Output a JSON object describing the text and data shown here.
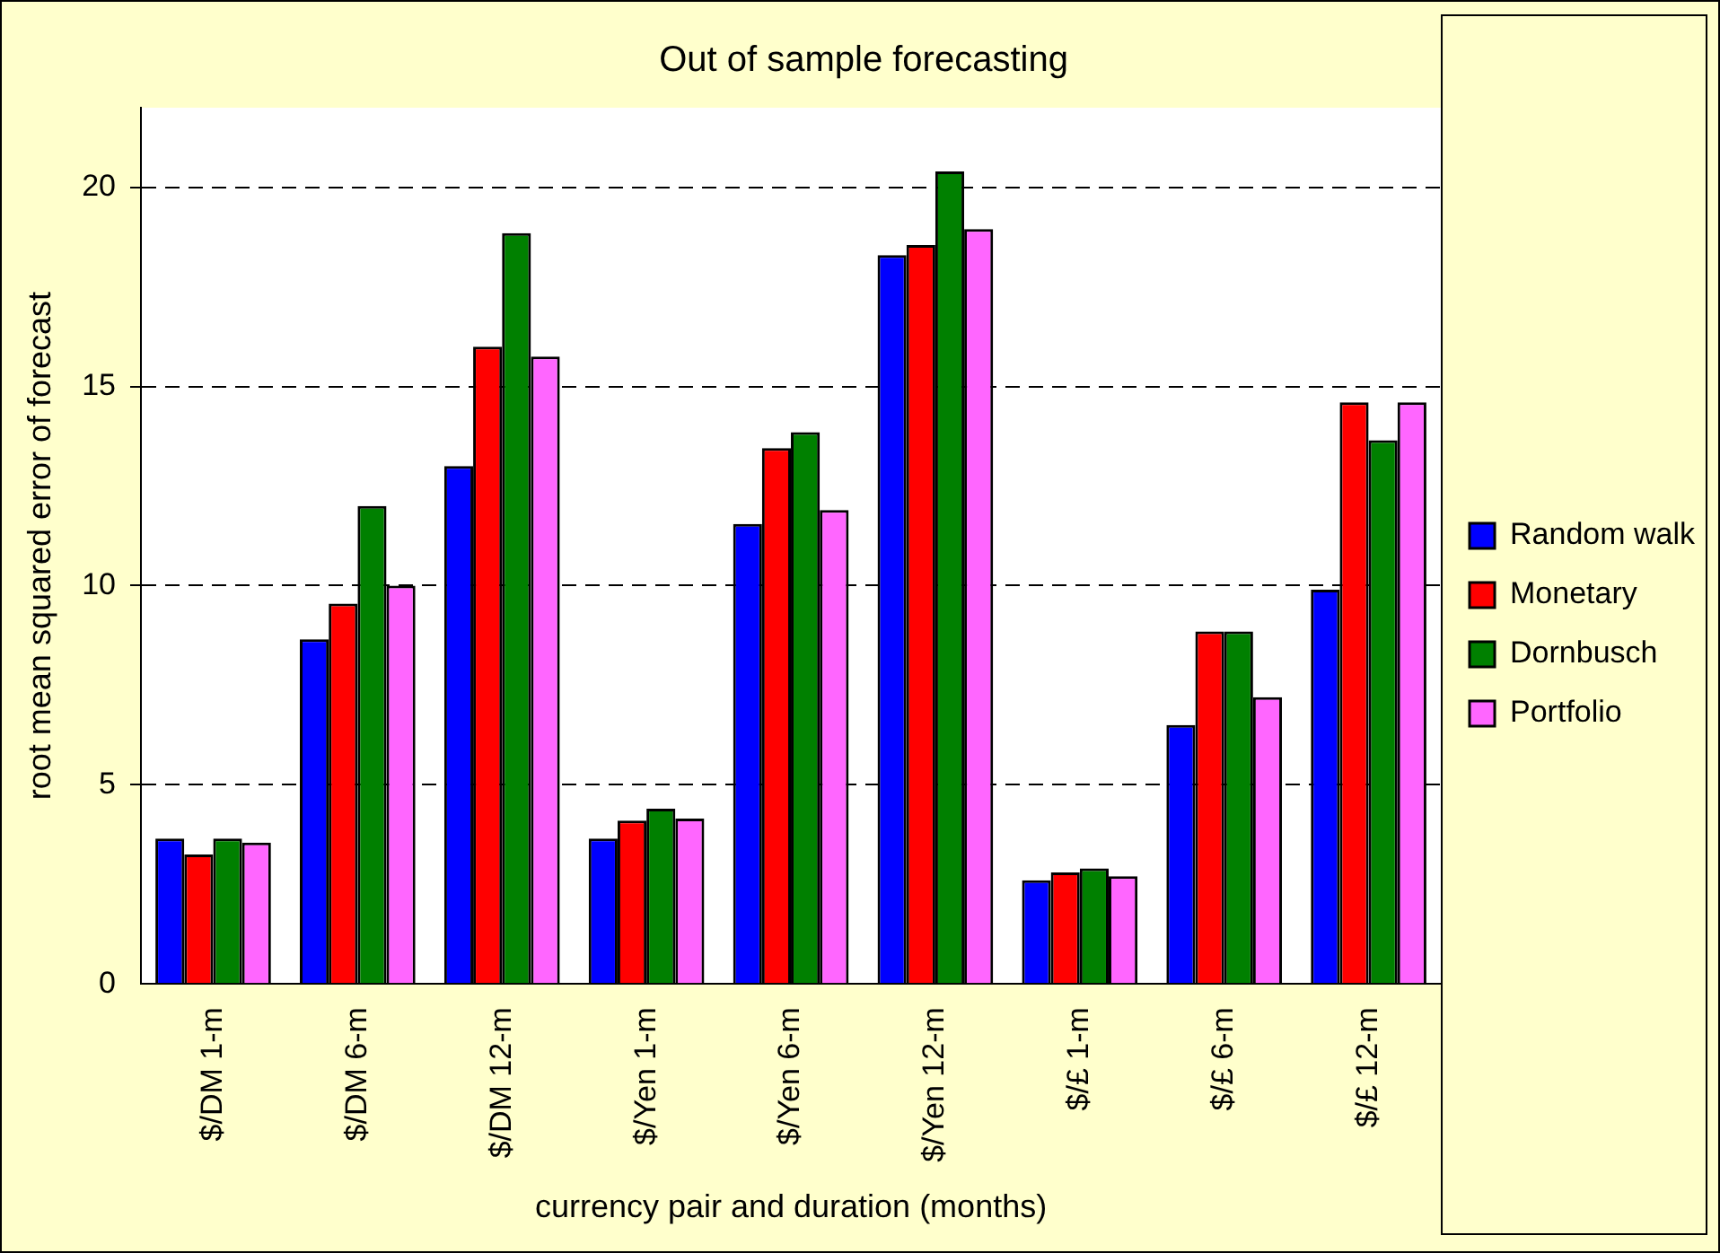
{
  "chart_data": {
    "type": "bar",
    "title": "Out of sample forecasting",
    "xlabel": "currency pair and duration (months)",
    "ylabel": "root mean squared error of forecast",
    "categories": [
      "$/DM 1-m",
      "$/DM 6-m",
      "$/DM 12-m",
      "$/Yen 1-m",
      "$/Yen 6-m",
      "$/Yen 12-m",
      "$/£ 1-m",
      "$/£ 6-m",
      "$/£ 12-m"
    ],
    "series": [
      {
        "name": "Random walk",
        "color": "#0000ff",
        "values": [
          3.65,
          8.65,
          13.0,
          3.65,
          11.55,
          18.3,
          2.6,
          6.5,
          9.9
        ]
      },
      {
        "name": "Monetary",
        "color": "#ff0000",
        "values": [
          3.25,
          9.55,
          16.0,
          4.1,
          13.45,
          18.55,
          2.8,
          8.85,
          14.6
        ]
      },
      {
        "name": "Dornbusch",
        "color": "#008000",
        "values": [
          3.65,
          12.0,
          18.85,
          4.4,
          13.85,
          20.4,
          2.9,
          8.85,
          13.65
        ]
      },
      {
        "name": "Portfolio",
        "color": "#ff66ff",
        "values": [
          3.55,
          10.0,
          15.75,
          4.15,
          11.9,
          18.95,
          2.7,
          7.2,
          14.6
        ]
      }
    ],
    "ylim": [
      0,
      22
    ],
    "yticks": [
      0,
      5,
      10,
      15,
      20
    ],
    "grid": "y",
    "legend": "right"
  }
}
